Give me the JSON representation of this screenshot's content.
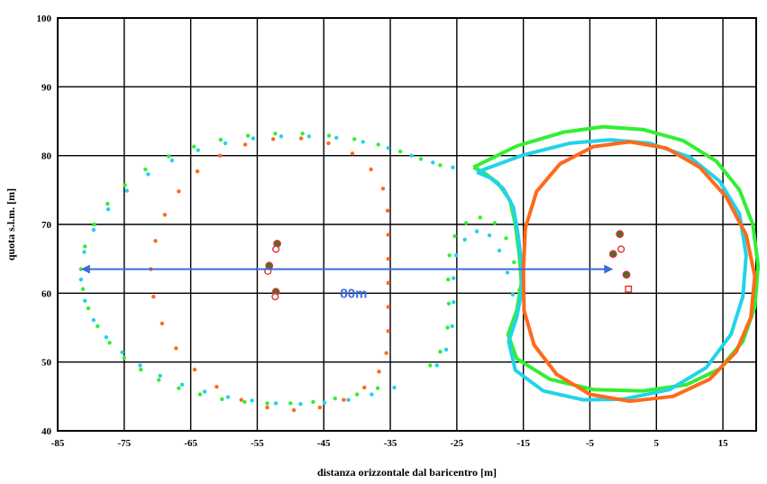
{
  "chart_data": {
    "type": "scatter",
    "title": "",
    "xlabel": "distanza orizzontale dal baricentro [m]",
    "ylabel": "quota s.l.m. [m]",
    "xlim": [
      -85,
      20
    ],
    "ylim": [
      40,
      100
    ],
    "xticks": [
      -85,
      -75,
      -65,
      -55,
      -45,
      -35,
      -25,
      -15,
      -5,
      5,
      15
    ],
    "yticks": [
      40,
      50,
      60,
      70,
      80,
      90,
      100
    ],
    "grid": true,
    "legend": "none",
    "annotation": {
      "text": "80m",
      "color": "#3d6ce0",
      "arrow_from": [
        -81.5,
        63.5
      ],
      "arrow_to": [
        -1.5,
        63.5
      ],
      "text_at": [
        -40.5,
        60
      ]
    },
    "series": [
      {
        "kind": "dots",
        "color": "#33ee33",
        "points": [
          [
            -81.5,
            63.5
          ],
          [
            -81.2,
            60.6
          ],
          [
            -80.4,
            57.8
          ],
          [
            -79.0,
            55.2
          ],
          [
            -77.2,
            52.8
          ],
          [
            -75.0,
            50.6
          ],
          [
            -72.5,
            48.9
          ],
          [
            -69.8,
            47.4
          ],
          [
            -66.8,
            46.2
          ],
          [
            -63.6,
            45.3
          ],
          [
            -60.3,
            44.6
          ],
          [
            -56.9,
            44.2
          ],
          [
            -53.5,
            44.0
          ],
          [
            -50.0,
            44.0
          ],
          [
            -46.6,
            44.2
          ],
          [
            -43.3,
            44.7
          ],
          [
            -40.0,
            45.3
          ],
          [
            -36.9,
            46.2
          ],
          [
            -80.9,
            66.8
          ],
          [
            -79.5,
            70.0
          ],
          [
            -77.5,
            73.0
          ],
          [
            -74.9,
            75.7
          ],
          [
            -71.8,
            78.0
          ],
          [
            -68.3,
            79.9
          ],
          [
            -64.5,
            81.3
          ],
          [
            -60.5,
            82.3
          ],
          [
            -56.4,
            82.9
          ],
          [
            -52.3,
            83.2
          ],
          [
            -48.2,
            83.2
          ],
          [
            -44.2,
            82.9
          ],
          [
            -40.4,
            82.4
          ],
          [
            -36.8,
            81.6
          ],
          [
            -33.5,
            80.6
          ],
          [
            -30.4,
            79.5
          ],
          [
            -27.5,
            78.6
          ]
        ]
      },
      {
        "kind": "dots",
        "color": "#22d3e8",
        "points": [
          [
            -81.5,
            62.0
          ],
          [
            -80.9,
            58.9
          ],
          [
            -79.6,
            56.1
          ],
          [
            -77.7,
            53.6
          ],
          [
            -75.3,
            51.4
          ],
          [
            -72.6,
            49.5
          ],
          [
            -69.6,
            48.0
          ],
          [
            -66.3,
            46.7
          ],
          [
            -62.9,
            45.7
          ],
          [
            -59.4,
            44.9
          ],
          [
            -55.8,
            44.4
          ],
          [
            -52.2,
            44.0
          ],
          [
            -48.5,
            43.9
          ],
          [
            -44.9,
            44.1
          ],
          [
            -41.3,
            44.5
          ],
          [
            -37.8,
            45.3
          ],
          [
            -34.4,
            46.3
          ],
          [
            -81.0,
            66.0
          ],
          [
            -79.6,
            69.2
          ],
          [
            -77.4,
            72.2
          ],
          [
            -74.6,
            74.9
          ],
          [
            -71.4,
            77.3
          ],
          [
            -67.8,
            79.3
          ],
          [
            -63.9,
            80.8
          ],
          [
            -59.8,
            81.8
          ],
          [
            -55.6,
            82.5
          ],
          [
            -51.4,
            82.8
          ],
          [
            -47.2,
            82.8
          ],
          [
            -43.1,
            82.6
          ],
          [
            -39.1,
            82.0
          ],
          [
            -35.3,
            81.1
          ],
          [
            -31.8,
            80.0
          ],
          [
            -28.6,
            79.0
          ],
          [
            -25.6,
            78.3
          ]
        ]
      },
      {
        "kind": "dots",
        "color": "#ff6a1a",
        "points": [
          [
            -71.0,
            63.5
          ],
          [
            -70.6,
            59.5
          ],
          [
            -69.3,
            55.6
          ],
          [
            -67.2,
            52.0
          ],
          [
            -64.4,
            48.9
          ],
          [
            -61.1,
            46.4
          ],
          [
            -57.4,
            44.5
          ],
          [
            -53.5,
            43.4
          ],
          [
            -49.5,
            43.0
          ],
          [
            -45.6,
            43.4
          ],
          [
            -42.0,
            44.5
          ],
          [
            -38.9,
            46.3
          ],
          [
            -36.7,
            48.6
          ],
          [
            -35.6,
            51.3
          ],
          [
            -35.3,
            54.5
          ],
          [
            -35.3,
            58.0
          ],
          [
            -35.3,
            61.5
          ],
          [
            -35.3,
            65.0
          ],
          [
            -35.3,
            68.5
          ],
          [
            -35.4,
            72.0
          ],
          [
            -36.1,
            75.2
          ],
          [
            -37.9,
            78.0
          ],
          [
            -40.7,
            80.3
          ],
          [
            -44.3,
            81.8
          ],
          [
            -48.4,
            82.5
          ],
          [
            -52.6,
            82.4
          ],
          [
            -56.8,
            81.6
          ],
          [
            -60.6,
            80.0
          ],
          [
            -64.0,
            77.7
          ],
          [
            -66.8,
            74.8
          ],
          [
            -68.9,
            71.4
          ],
          [
            -70.3,
            67.6
          ]
        ]
      },
      {
        "kind": "dots",
        "color": "#33ee33",
        "points": [
          [
            -29.0,
            49.5
          ],
          [
            -27.5,
            51.5
          ],
          [
            -26.4,
            55.0
          ],
          [
            -26.2,
            58.5
          ],
          [
            -26.3,
            62.0
          ],
          [
            -26.1,
            65.5
          ],
          [
            -25.3,
            68.3
          ],
          [
            -23.6,
            70.2
          ],
          [
            -21.5,
            71.0
          ],
          [
            -19.3,
            70.2
          ],
          [
            -17.6,
            68.0
          ],
          [
            -16.4,
            64.5
          ],
          [
            -15.6,
            60.5
          ]
        ]
      },
      {
        "kind": "dots",
        "color": "#22d3e8",
        "points": [
          [
            -28.0,
            49.5
          ],
          [
            -26.6,
            51.8
          ],
          [
            -25.7,
            55.2
          ],
          [
            -25.5,
            58.7
          ],
          [
            -25.5,
            62.2
          ],
          [
            -25.1,
            65.5
          ],
          [
            -23.8,
            67.8
          ],
          [
            -22.0,
            69.0
          ],
          [
            -20.1,
            68.4
          ],
          [
            -18.6,
            66.2
          ],
          [
            -17.4,
            63.0
          ],
          [
            -16.6,
            59.8
          ]
        ]
      },
      {
        "kind": "path",
        "color": "#33ee33",
        "points": [
          [
            -22.5,
            78.3
          ],
          [
            -16.0,
            81.4
          ],
          [
            -9.0,
            83.4
          ],
          [
            -3.0,
            84.2
          ],
          [
            3.0,
            83.8
          ],
          [
            9.0,
            82.2
          ],
          [
            14.0,
            79.2
          ],
          [
            17.5,
            75.0
          ],
          [
            19.5,
            70.0
          ],
          [
            20.3,
            64.0
          ],
          [
            19.8,
            58.0
          ],
          [
            18.0,
            53.0
          ],
          [
            14.5,
            49.0
          ],
          [
            9.5,
            46.7
          ],
          [
            3.0,
            45.8
          ],
          [
            -4.5,
            46.0
          ],
          [
            -11.0,
            47.5
          ],
          [
            -16.0,
            50.5
          ],
          [
            -17.3,
            54.0
          ],
          [
            -16.0,
            57.5
          ],
          [
            -15.3,
            61.5
          ],
          [
            -15.6,
            65.5
          ],
          [
            -16.2,
            70.0
          ],
          [
            -17.0,
            73.5
          ],
          [
            -18.8,
            76.0
          ],
          [
            -21.0,
            77.6
          ],
          [
            -22.5,
            78.3
          ]
        ]
      },
      {
        "kind": "path",
        "color": "#22d3e8",
        "points": [
          [
            -22.0,
            77.6
          ],
          [
            -15.0,
            80.1
          ],
          [
            -8.0,
            81.8
          ],
          [
            -2.0,
            82.3
          ],
          [
            4.0,
            81.8
          ],
          [
            10.0,
            79.8
          ],
          [
            14.5,
            76.3
          ],
          [
            17.5,
            71.5
          ],
          [
            18.5,
            65.5
          ],
          [
            18.0,
            59.5
          ],
          [
            16.2,
            54.0
          ],
          [
            12.5,
            49.2
          ],
          [
            7.0,
            46.0
          ],
          [
            0.0,
            44.6
          ],
          [
            -6.0,
            44.5
          ],
          [
            -12.0,
            45.8
          ],
          [
            -16.2,
            48.8
          ],
          [
            -17.2,
            53.0
          ],
          [
            -16.0,
            56.5
          ],
          [
            -15.2,
            60.5
          ],
          [
            -15.3,
            64.5
          ],
          [
            -15.8,
            68.5
          ],
          [
            -16.5,
            72.5
          ],
          [
            -18.0,
            75.2
          ],
          [
            -20.0,
            76.8
          ],
          [
            -22.0,
            77.6
          ]
        ]
      },
      {
        "kind": "path",
        "color": "#ff6a1a",
        "points": [
          [
            -15.0,
            63.5
          ],
          [
            -14.7,
            69.5
          ],
          [
            -13.0,
            74.8
          ],
          [
            -9.5,
            78.8
          ],
          [
            -4.5,
            81.3
          ],
          [
            1.0,
            82.0
          ],
          [
            6.5,
            81.1
          ],
          [
            11.5,
            78.3
          ],
          [
            15.5,
            74.0
          ],
          [
            18.5,
            68.5
          ],
          [
            19.8,
            62.5
          ],
          [
            19.2,
            56.5
          ],
          [
            17.0,
            51.5
          ],
          [
            13.0,
            47.5
          ],
          [
            7.5,
            45.0
          ],
          [
            1.0,
            44.3
          ],
          [
            -5.0,
            45.3
          ],
          [
            -10.0,
            48.2
          ],
          [
            -13.4,
            52.5
          ],
          [
            -14.9,
            57.5
          ],
          [
            -15.0,
            63.5
          ]
        ]
      },
      {
        "kind": "markers",
        "style": "filled-circle",
        "color": "#e03030",
        "fill": "#2e7d2e",
        "points": [
          [
            -52.0,
            67.2
          ],
          [
            -53.2,
            64.0
          ],
          [
            -52.2,
            60.2
          ],
          [
            -0.5,
            68.6
          ],
          [
            -1.5,
            65.7
          ],
          [
            0.5,
            62.7
          ]
        ]
      },
      {
        "kind": "markers",
        "style": "open-circle",
        "color": "#e03030",
        "points": [
          [
            -52.2,
            66.4
          ],
          [
            -53.4,
            63.2
          ],
          [
            -52.3,
            59.5
          ],
          [
            -0.3,
            66.4
          ]
        ]
      },
      {
        "kind": "markers",
        "style": "open-square",
        "color": "#e03030",
        "points": [
          [
            0.8,
            60.6
          ]
        ]
      }
    ]
  }
}
